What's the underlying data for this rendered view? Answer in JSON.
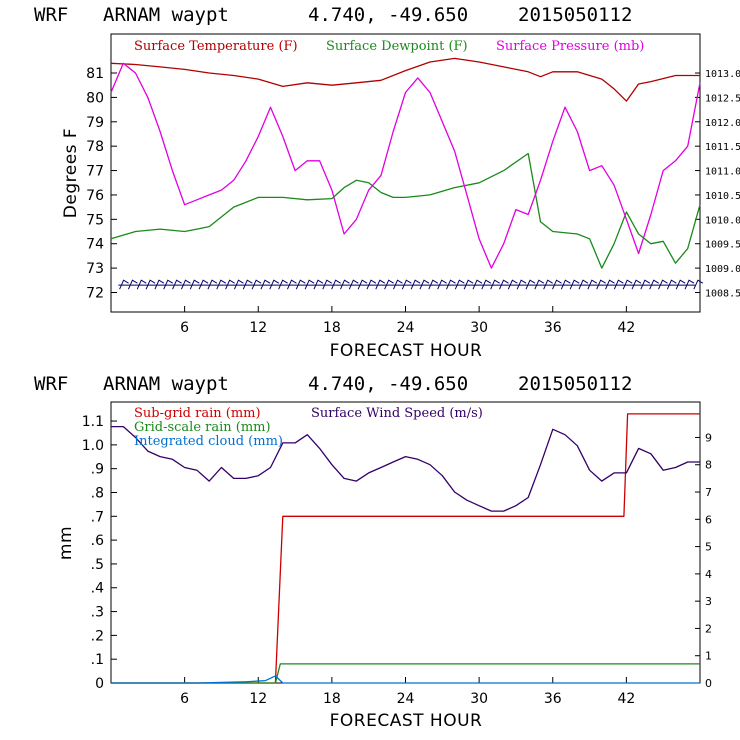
{
  "chart_data": [
    {
      "type": "line",
      "header": {
        "model": "WRF",
        "station": "ARNAM waypt",
        "coords": "4.740, -49.650",
        "date": "2015050112"
      },
      "xlabel": "FORECAST HOUR",
      "ylabel": "Degrees F",
      "xlim": [
        0,
        48
      ],
      "x_ticks": [
        "6",
        "12",
        "18",
        "24",
        "30",
        "36",
        "42"
      ],
      "y_ticks": [
        "72",
        "73",
        "74",
        "75",
        "76",
        "77",
        "78",
        "79",
        "80",
        "81"
      ],
      "ylim": [
        71.2,
        82.6
      ],
      "y2_ticks": [
        "1008.5",
        "1009.0",
        "1009.5",
        "1010.0",
        "1010.5",
        "1011.0",
        "1011.5",
        "1012.0",
        "1012.5",
        "1013.0"
      ],
      "y2lim": [
        1008.1,
        1013.8
      ],
      "legend": {
        "placement": "top",
        "entries": [
          "Surface Temperature (F)",
          "Surface Dewpoint (F)",
          "Surface Pressure (mb)"
        ]
      },
      "series": [
        {
          "name": "Surface Temperature (F)",
          "color": "#b00000",
          "axis": "left",
          "x": [
            0,
            2,
            4,
            6,
            8,
            10,
            12,
            14,
            16,
            18,
            20,
            22,
            24,
            26,
            28,
            30,
            32,
            34,
            35,
            36,
            38,
            40,
            41,
            42,
            43,
            44,
            46,
            48
          ],
          "values": [
            81.4,
            81.35,
            81.25,
            81.15,
            81.0,
            80.9,
            80.75,
            80.45,
            80.6,
            80.5,
            80.6,
            80.7,
            81.1,
            81.45,
            81.6,
            81.45,
            81.25,
            81.05,
            80.85,
            81.05,
            81.05,
            80.75,
            80.35,
            79.85,
            80.55,
            80.65,
            80.9,
            80.9
          ]
        },
        {
          "name": "Surface Dewpoint (F)",
          "color": "#1a8a1a",
          "axis": "left",
          "x": [
            0,
            2,
            4,
            6,
            7,
            8,
            10,
            12,
            14,
            16,
            18,
            19,
            20,
            21,
            22,
            23,
            24,
            26,
            28,
            30,
            32,
            34,
            35,
            36,
            38,
            39,
            40,
            41,
            42,
            43,
            44,
            45,
            46,
            47,
            48
          ],
          "values": [
            74.2,
            74.5,
            74.6,
            74.5,
            74.6,
            74.7,
            75.5,
            75.9,
            75.9,
            75.8,
            75.85,
            76.3,
            76.6,
            76.5,
            76.1,
            75.9,
            75.9,
            76.0,
            76.3,
            76.5,
            77.0,
            77.7,
            74.9,
            74.5,
            74.4,
            74.2,
            73.0,
            74.0,
            75.3,
            74.4,
            74.0,
            74.1,
            73.2,
            73.8,
            75.6
          ]
        },
        {
          "name": "Surface Pressure (mb)",
          "color": "#e000e0",
          "axis": "right",
          "x": [
            0,
            1,
            2,
            3,
            4,
            5,
            6,
            7,
            8,
            9,
            10,
            11,
            12,
            13,
            14,
            15,
            16,
            17,
            18,
            19,
            20,
            21,
            22,
            23,
            24,
            25,
            26,
            27,
            28,
            29,
            30,
            31,
            32,
            33,
            34,
            35,
            36,
            37,
            38,
            39,
            40,
            41,
            42,
            43,
            44,
            45,
            46,
            47,
            48
          ],
          "values": [
            1012.6,
            1013.2,
            1013.0,
            1012.5,
            1011.8,
            1011.0,
            1010.3,
            1010.4,
            1010.5,
            1010.6,
            1010.8,
            1011.2,
            1011.7,
            1012.3,
            1011.7,
            1011.0,
            1011.2,
            1011.2,
            1010.6,
            1009.7,
            1010.0,
            1010.6,
            1010.9,
            1011.8,
            1012.6,
            1012.9,
            1012.6,
            1012.0,
            1011.4,
            1010.5,
            1009.6,
            1009.0,
            1009.5,
            1010.2,
            1010.1,
            1010.8,
            1011.6,
            1012.3,
            1011.8,
            1011.0,
            1011.1,
            1010.7,
            1010.0,
            1009.3,
            1010.1,
            1011.0,
            1011.2,
            1011.5,
            1012.8
          ]
        },
        {
          "name": "",
          "color": "#000066",
          "axis": "left",
          "style": "wind-barbs",
          "values": [
            72.3
          ]
        }
      ]
    },
    {
      "type": "line",
      "header": {
        "model": "WRF",
        "station": "ARNAM waypt",
        "coords": "4.740, -49.650",
        "date": "2015050112"
      },
      "xlabel": "FORECAST HOUR",
      "ylabel": "mm",
      "xlim": [
        0,
        48
      ],
      "x_ticks": [
        "6",
        "12",
        "18",
        "24",
        "30",
        "36",
        "42"
      ],
      "y_ticks": [
        "0",
        ".1",
        ".2",
        ".3",
        ".4",
        ".5",
        ".6",
        ".7",
        ".8",
        ".9",
        "1.0",
        "1.1"
      ],
      "ylim": [
        0,
        1.18
      ],
      "y2_ticks": [
        "0",
        "1",
        "2",
        "3",
        "4",
        "5",
        "6",
        "7",
        "8",
        "9"
      ],
      "y2lim": [
        0,
        10.3
      ],
      "legend": {
        "placement": "top-left",
        "entries": [
          "Sub-grid rain (mm)",
          "Grid-scale rain (mm)",
          "Integrated cloud (mm)",
          "Surface Wind Speed (m/s)"
        ]
      },
      "series": [
        {
          "name": "Sub-grid rain (mm)",
          "color": "#cc0000",
          "axis": "left",
          "x": [
            0,
            13.4,
            14,
            41.8,
            42.1,
            48
          ],
          "values": [
            0,
            0,
            0.7,
            0.7,
            1.13,
            1.13
          ]
        },
        {
          "name": "Grid-scale rain (mm)",
          "color": "#1a8a1a",
          "axis": "left",
          "x": [
            0,
            13.4,
            13.8,
            48
          ],
          "values": [
            0,
            0,
            0.08,
            0.08
          ]
        },
        {
          "name": "Integrated cloud (mm)",
          "color": "#0070d0",
          "axis": "left",
          "x": [
            0,
            7,
            11,
            12.6,
            13.4,
            14,
            48
          ],
          "values": [
            0,
            0,
            0.005,
            0.01,
            0.03,
            0,
            0
          ]
        },
        {
          "name": "Surface Wind Speed (m/s)",
          "color": "#330066",
          "axis": "right",
          "x": [
            0,
            1,
            2,
            3,
            4,
            5,
            6,
            7,
            8,
            9,
            10,
            11,
            12,
            13,
            14,
            15,
            16,
            17,
            18,
            19,
            20,
            21,
            22,
            23,
            24,
            25,
            26,
            27,
            28,
            29,
            30,
            31,
            32,
            33,
            34,
            35,
            36,
            37,
            38,
            39,
            40,
            41,
            42,
            43,
            44,
            45,
            46,
            47,
            48
          ],
          "values": [
            9.4,
            9.4,
            9.0,
            8.5,
            8.3,
            8.2,
            7.9,
            7.8,
            7.4,
            7.9,
            7.5,
            7.5,
            7.6,
            7.9,
            8.8,
            8.8,
            9.1,
            8.6,
            8.0,
            7.5,
            7.4,
            7.7,
            7.9,
            8.1,
            8.3,
            8.2,
            8.0,
            7.6,
            7.0,
            6.7,
            6.5,
            6.3,
            6.3,
            6.5,
            6.8,
            8.0,
            9.3,
            9.1,
            8.7,
            7.8,
            7.4,
            7.7,
            7.7,
            8.6,
            8.4,
            7.8,
            7.9,
            8.1,
            8.1
          ]
        }
      ]
    }
  ]
}
